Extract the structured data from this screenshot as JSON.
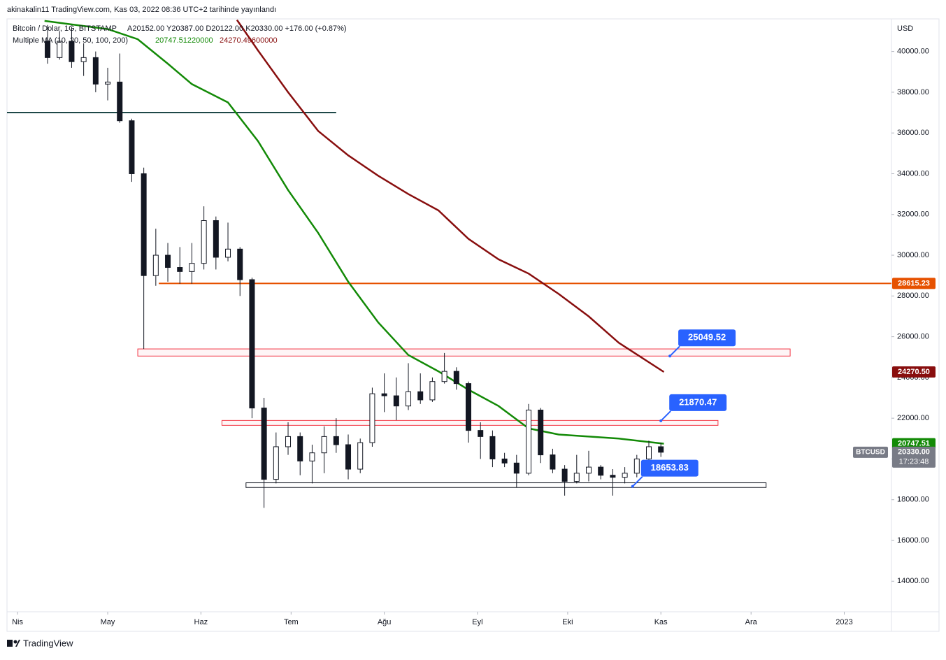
{
  "header": {
    "publisher": "akinakalin11 TradingView.com, Kas 03, 2022 08:36 UTC+2 tarihinde yayınlandı",
    "brand": "TradingView"
  },
  "chart_data": {
    "type": "candlestick",
    "symbol": "Bitcoin / Dolar, 1G, BITSTAMP",
    "ohlc_text": "A20152.00 Y20387.00 D20122.00 K20330.00 +176.00 (+0.87%)",
    "ma_title": "Multiple MA (10, 20, 50, 100, 200)",
    "currency": "USD",
    "x": [
      10,
      14,
      18,
      22,
      26,
      30,
      34,
      38,
      42,
      46,
      50,
      54,
      58,
      62,
      66,
      70,
      74,
      78,
      82,
      86,
      90,
      94,
      98,
      102,
      106,
      110,
      114,
      118,
      122,
      126,
      130,
      134,
      138,
      142,
      146,
      150,
      154,
      158,
      162,
      166,
      170,
      174,
      178,
      182,
      186,
      190,
      194,
      198,
      202,
      206,
      210,
      214
    ],
    "open": [
      40500,
      39700,
      40500,
      39500,
      39700,
      38400,
      38500,
      36600,
      34000,
      29000,
      30000,
      29400,
      29200,
      29600,
      31700,
      29900,
      30300,
      28800,
      22500,
      19000,
      20600,
      21100,
      19900,
      20300,
      21100,
      20700,
      19500,
      20800,
      23200,
      23100,
      22600,
      23300,
      22900,
      23800,
      24300,
      23700,
      21400,
      21100,
      20000,
      19800,
      19300,
      22400,
      20200,
      19500,
      18900,
      19300,
      19600,
      19200,
      19100,
      19300,
      20000,
      20600
    ],
    "high": [
      41300,
      41000,
      41200,
      40400,
      40000,
      39200,
      39900,
      36700,
      34300,
      31300,
      30600,
      30400,
      30600,
      32400,
      31900,
      31600,
      30400,
      28900,
      23000,
      21300,
      21800,
      21300,
      20700,
      21600,
      22000,
      21200,
      21000,
      23500,
      24200,
      24000,
      24700,
      24200,
      24000,
      25200,
      24500,
      23800,
      21800,
      21400,
      20300,
      20200,
      22700,
      22500,
      20500,
      19700,
      20200,
      20400,
      19700,
      19500,
      19600,
      20200,
      20900,
      20800
    ],
    "low": [
      39400,
      39600,
      39200,
      38800,
      38000,
      37600,
      36500,
      33600,
      25400,
      28500,
      28700,
      28600,
      28600,
      29300,
      29300,
      29700,
      28000,
      22000,
      17600,
      18800,
      20200,
      19200,
      18800,
      19300,
      20300,
      19000,
      19300,
      20600,
      22300,
      21900,
      22400,
      22700,
      22800,
      23700,
      23400,
      20800,
      20000,
      19600,
      19600,
      18600,
      19200,
      19800,
      19300,
      18200,
      18800,
      18900,
      19000,
      18200,
      18800,
      19100,
      19900,
      20100
    ],
    "close": [
      39700,
      40500,
      39500,
      39700,
      38400,
      38500,
      36600,
      34000,
      29000,
      30000,
      29400,
      29200,
      29600,
      31700,
      29900,
      30300,
      28800,
      22500,
      19000,
      20600,
      21100,
      19900,
      20300,
      21100,
      20700,
      19500,
      20800,
      23200,
      23100,
      22600,
      23300,
      22900,
      23800,
      24300,
      23700,
      21400,
      21100,
      20000,
      19800,
      19300,
      22400,
      20200,
      19500,
      18900,
      19300,
      19600,
      19200,
      19100,
      19300,
      20000,
      20600,
      20330
    ],
    "up_color": "#ffffff",
    "down_color": "#131722",
    "moving_averages": [
      {
        "color": "#138a07",
        "value": 20747.5122,
        "legend_label": "20747.51220000",
        "tag_label": "20747.51",
        "x": [
          9,
          30,
          40,
          50,
          58,
          70,
          80,
          90,
          100,
          110,
          120,
          130,
          140,
          150,
          160,
          170,
          180,
          190,
          200,
          215
        ],
        "values": [
          41500,
          41100,
          40600,
          39400,
          38400,
          37500,
          35600,
          33200,
          31100,
          28700,
          26700,
          25100,
          24300,
          23400,
          22600,
          21500,
          21200,
          21100,
          21000,
          20750
        ]
      },
      {
        "color": "#880e0e",
        "value": 24270.496,
        "legend_label": "24270.49600000",
        "tag_label": "24270.50",
        "x": [
          73,
          80,
          90,
          100,
          110,
          120,
          130,
          140,
          150,
          160,
          170,
          180,
          190,
          200,
          215
        ],
        "values": [
          41550,
          40050,
          38000,
          36100,
          34900,
          33900,
          33000,
          32200,
          30800,
          29800,
          29100,
          28100,
          27000,
          25700,
          24270
        ]
      }
    ],
    "levels": [
      {
        "value": 37000,
        "color": "#1e4848",
        "x": [
          -3.5,
          106
        ],
        "tag": false
      },
      {
        "value": 28615.23,
        "color": "#e65100",
        "x": [
          47,
          290.7
        ],
        "tag": true
      }
    ],
    "zones": [
      {
        "low": 25050,
        "high": 25400,
        "x": [
          40,
          257
        ],
        "color": "#f23645"
      },
      {
        "low": 21650,
        "high": 21890,
        "x": [
          68,
          233
        ],
        "color": "#f23645"
      },
      {
        "low": 18600,
        "high": 18830,
        "x": [
          76,
          249
        ],
        "color": "#131722"
      }
    ],
    "callouts": [
      {
        "value": 25049.52,
        "x": 217
      },
      {
        "value": 21870.47,
        "x": 214
      },
      {
        "value": 18653.83,
        "x": 204.6
      }
    ],
    "last_price": 20330,
    "last_price_label": "20330.00",
    "countdown": "17:23:48",
    "ticker": "BTCUSD",
    "xlim": [
      -3.5,
      290.7
    ],
    "ylim": [
      12500,
      41600
    ],
    "xticks": [
      {
        "value": 0,
        "label": "Nis"
      },
      {
        "value": 30,
        "label": "May"
      },
      {
        "value": 61,
        "label": "Haz"
      },
      {
        "value": 91,
        "label": "Tem"
      },
      {
        "value": 122,
        "label": "Ağu"
      },
      {
        "value": 153,
        "label": "Eyl"
      },
      {
        "value": 183,
        "label": "Eki"
      },
      {
        "value": 214,
        "label": "Kas"
      },
      {
        "value": 244,
        "label": "Ara"
      },
      {
        "value": 275,
        "label": "2023"
      }
    ],
    "yticks": [
      {
        "value": 14000,
        "label": "14000.00"
      },
      {
        "value": 16000,
        "label": "16000.00"
      },
      {
        "value": 18000,
        "label": "18000.00"
      },
      {
        "value": 20000,
        "label": "20000.00"
      },
      {
        "value": 22000,
        "label": "22000.00"
      },
      {
        "value": 24000,
        "label": "24000.00"
      },
      {
        "value": 26000,
        "label": "26000.00"
      },
      {
        "value": 28000,
        "label": "28000.00"
      },
      {
        "value": 30000,
        "label": "30000.00"
      },
      {
        "value": 32000,
        "label": "32000.00"
      },
      {
        "value": 34000,
        "label": "34000.00"
      },
      {
        "value": 36000,
        "label": "36000.00"
      },
      {
        "value": 38000,
        "label": "38000.00"
      },
      {
        "value": 40000,
        "label": "40000.00"
      }
    ],
    "grid": false
  }
}
